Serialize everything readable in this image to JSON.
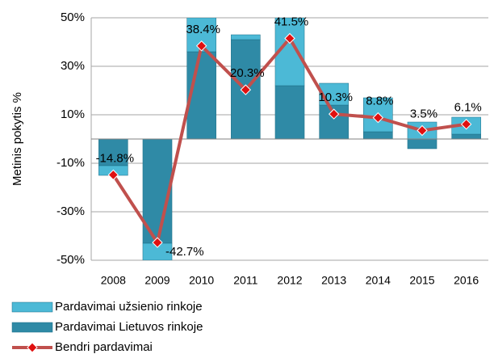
{
  "chart_data": {
    "type": "bar-line",
    "y_label": "Metinis pokytis %",
    "categories": [
      "2008",
      "2009",
      "2010",
      "2011",
      "2012",
      "2013",
      "2014",
      "2015",
      "2016"
    ],
    "series": [
      {
        "name": "Pardavimai Lietuvos rinkoje",
        "color": "#2f8aa6",
        "type": "bar",
        "values": [
          -11,
          -43,
          36,
          41,
          22,
          14,
          3,
          -4,
          2
        ]
      },
      {
        "name": "Pardavimai užsienio rinkoje",
        "color": "#4cb9d6",
        "type": "bar",
        "values": [
          -4,
          -7,
          14,
          2,
          28,
          9,
          14,
          7,
          7
        ]
      },
      {
        "name": "Bendri pardavimai",
        "color": "#c0504d",
        "type": "line",
        "values": [
          -14.8,
          -42.7,
          38.4,
          20.3,
          41.5,
          10.3,
          8.8,
          3.5,
          6.1
        ],
        "value_labels": [
          "-14.8%",
          "-42.7%",
          "38.4%",
          "20.3%",
          "41.5%",
          "10.3%",
          "8.8%",
          "3.5%",
          "6.1%"
        ]
      }
    ],
    "legend_order": [
      1,
      0,
      2
    ],
    "ylim": [
      -50,
      50
    ],
    "yticks": [
      {
        "value": -50,
        "label": "-50%"
      },
      {
        "value": -30,
        "label": "-30%"
      },
      {
        "value": -10,
        "label": "-10%"
      },
      {
        "value": 10,
        "label": "10%"
      },
      {
        "value": 30,
        "label": "30%"
      },
      {
        "value": 50,
        "label": "50%"
      }
    ],
    "grid": true
  }
}
